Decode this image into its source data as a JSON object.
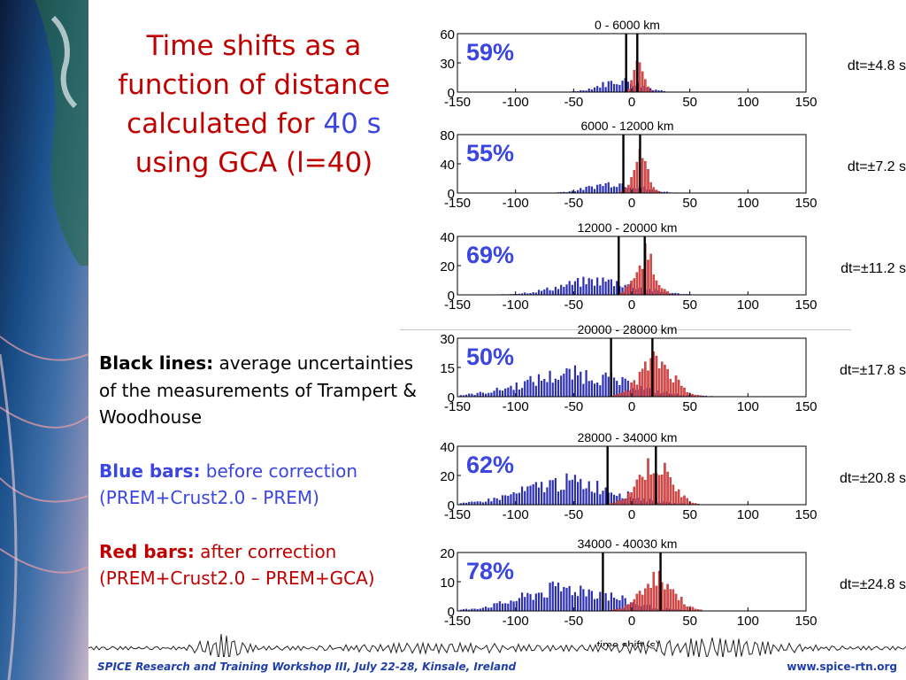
{
  "slide": {
    "title_part1": "Time shifts as a function of distance calculated for ",
    "title_highlight": "40 s",
    "title_part2": " using GCA (l=40)",
    "notes": {
      "black_label": "Black lines:",
      "black_text": " average uncertainties of the measurements of Trampert & Woodhouse",
      "blue_label": "Blue bars:",
      "blue_text": " before correction (PREM+Crust2.0 - PREM)",
      "red_label": "Red bars:",
      "red_text": " after correction (PREM+Crust2.0 – PREM+GCA)"
    },
    "footer_left": "SPICE Research and Training Workshop III, July 22-28, Kinsale, Ireland",
    "footer_right": "www.spice-rtn.org",
    "xlabel": "time shift (s)",
    "colors": {
      "title_red": "#c00000",
      "blue_text": "#3b46e0",
      "footer_blue": "#1f3ea8",
      "bar_blue": "#2b2fb0",
      "bar_red": "#e04848"
    }
  },
  "chart_data": [
    {
      "type": "bar",
      "title": "0 - 6000 km",
      "percent": "59%",
      "dt_label": "dt=±4.8 s",
      "dt": 4.8,
      "ylim": [
        0,
        60
      ],
      "yticks": [
        "0",
        "30",
        "60"
      ],
      "xlim": [
        -150,
        150
      ],
      "xticks": [
        "-150",
        "-100",
        "-50",
        "0",
        "50",
        "100",
        "150"
      ],
      "blue_center": -10,
      "blue_width": 25,
      "blue_peak": 12,
      "red_center": 5,
      "red_width": 6,
      "red_peak": 45
    },
    {
      "type": "bar",
      "title": "6000 - 12000 km",
      "percent": "55%",
      "dt_label": "dt=±7.2 s",
      "dt": 7.2,
      "ylim": [
        0,
        80
      ],
      "yticks": [
        "0",
        "40",
        "80"
      ],
      "xlim": [
        -150,
        150
      ],
      "xticks": [
        "-150",
        "-100",
        "-50",
        "0",
        "50",
        "100",
        "150"
      ],
      "blue_center": -15,
      "blue_width": 30,
      "blue_peak": 14,
      "red_center": 6,
      "red_width": 9,
      "red_peak": 55
    },
    {
      "type": "bar",
      "title": "12000 - 20000 km",
      "percent": "69%",
      "dt_label": "dt=±11.2 s",
      "dt": 11.2,
      "ylim": [
        0,
        40
      ],
      "yticks": [
        "0",
        "20",
        "40"
      ],
      "xlim": [
        -150,
        150
      ],
      "xticks": [
        "-150",
        "-100",
        "-50",
        "0",
        "50",
        "100",
        "150"
      ],
      "blue_center": -30,
      "blue_width": 45,
      "blue_peak": 10,
      "red_center": 10,
      "red_width": 12,
      "red_peak": 30
    },
    {
      "type": "bar",
      "title": "20000 - 28000 km",
      "percent": "50%",
      "dt_label": "dt=±17.8 s",
      "dt": 17.8,
      "ylim": [
        0,
        30
      ],
      "yticks": [
        "0",
        "15",
        "30"
      ],
      "xlim": [
        -150,
        150
      ],
      "xticks": [
        "-150",
        "-100",
        "-50",
        "0",
        "50",
        "100",
        "150"
      ],
      "blue_center": -50,
      "blue_width": 60,
      "blue_peak": 12,
      "red_center": 20,
      "red_width": 20,
      "red_peak": 20
    },
    {
      "type": "bar",
      "title": "28000 - 34000 km",
      "percent": "62%",
      "dt_label": "dt=±20.8 s",
      "dt": 20.8,
      "ylim": [
        0,
        40
      ],
      "yticks": [
        "0",
        "20",
        "40"
      ],
      "xlim": [
        -150,
        150
      ],
      "xticks": [
        "-150",
        "-100",
        "-50",
        "0",
        "50",
        "100",
        "150"
      ],
      "blue_center": -55,
      "blue_width": 55,
      "blue_peak": 16,
      "red_center": 18,
      "red_width": 20,
      "red_peak": 30
    },
    {
      "type": "bar",
      "title": "34000 - 40030 km",
      "percent": "78%",
      "dt_label": "dt=±24.8 s",
      "dt": 24.8,
      "ylim": [
        0,
        20
      ],
      "yticks": [
        "0",
        "10",
        "20"
      ],
      "xlim": [
        -150,
        150
      ],
      "xticks": [
        "-150",
        "-100",
        "-50",
        "0",
        "50",
        "100",
        "150"
      ],
      "blue_center": -55,
      "blue_width": 55,
      "blue_peak": 8,
      "red_center": 20,
      "red_width": 20,
      "red_peak": 13
    }
  ]
}
